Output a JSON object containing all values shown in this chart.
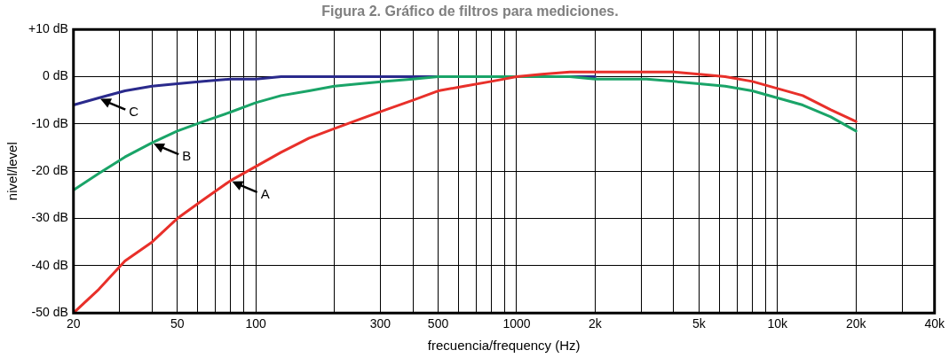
{
  "chart_data": {
    "type": "line",
    "title": "Figura 2. Gráfico de filtros para mediciones.",
    "xlabel": "frecuencia/frequency (Hz)",
    "ylabel": "nivel/level",
    "x": [
      20,
      25,
      31.5,
      40,
      50,
      63,
      80,
      100,
      125,
      160,
      200,
      250,
      315,
      400,
      500,
      630,
      800,
      1000,
      1250,
      1600,
      2000,
      2500,
      3150,
      4000,
      5000,
      6300,
      8000,
      10000,
      12500,
      16000,
      20000
    ],
    "series": [
      {
        "name": "A",
        "color": "#e8302a",
        "values": [
          -50,
          -45,
          -39,
          -35,
          -30,
          -26,
          -22,
          -19,
          -16,
          -13,
          -11,
          -9,
          -7,
          -5,
          -3,
          -2,
          -1,
          0,
          0.5,
          1,
          1,
          1,
          1,
          1,
          0.5,
          0,
          -1,
          -2.5,
          -4,
          -7,
          -9.5
        ]
      },
      {
        "name": "B",
        "color": "#1aa468",
        "values": [
          -24,
          -20.5,
          -17,
          -14,
          -11.5,
          -9.5,
          -7.5,
          -5.5,
          -4,
          -3,
          -2,
          -1.5,
          -1,
          -0.5,
          0,
          0,
          0,
          0,
          0,
          0,
          -0.5,
          -0.5,
          -0.5,
          -1,
          -1.5,
          -2,
          -3,
          -4.5,
          -6,
          -8.5,
          -11.5
        ]
      },
      {
        "name": "C",
        "color": "#2a2a8c",
        "values": [
          -6,
          -4.5,
          -3,
          -2,
          -1.5,
          -1,
          -0.5,
          -0.5,
          0,
          0,
          0,
          0,
          0,
          0,
          0,
          0,
          0,
          0,
          0,
          0,
          0,
          null,
          null,
          null,
          null,
          null,
          null,
          null,
          null,
          null,
          null
        ]
      }
    ],
    "xlim": [
      20,
      40000
    ],
    "ylim": [
      -50,
      10
    ],
    "log": "x",
    "xticks": [
      20,
      {
        "value": 30,
        "label": null
      },
      {
        "value": 40,
        "label": null
      },
      50,
      {
        "value": 60,
        "label": null
      },
      {
        "value": 70,
        "label": null
      },
      {
        "value": 80,
        "label": null
      },
      {
        "value": 90,
        "label": null
      },
      100,
      {
        "value": 200,
        "label": null
      },
      300,
      {
        "value": 400,
        "label": null
      },
      500,
      {
        "value": 600,
        "label": null
      },
      {
        "value": 700,
        "label": null
      },
      {
        "value": 800,
        "label": null
      },
      {
        "value": 900,
        "label": null
      },
      1000,
      {
        "value": 2000,
        "label": "2k"
      },
      {
        "value": 3000,
        "label": null
      },
      {
        "value": 4000,
        "label": null
      },
      {
        "value": 5000,
        "label": "5k"
      },
      {
        "value": 6000,
        "label": null
      },
      {
        "value": 7000,
        "label": null
      },
      {
        "value": 8000,
        "label": null
      },
      {
        "value": 9000,
        "label": null
      },
      {
        "value": 10000,
        "label": "10k"
      },
      {
        "value": 20000,
        "label": "20k"
      },
      {
        "value": 30000,
        "label": null
      },
      {
        "value": 40000,
        "label": "40k"
      }
    ],
    "yticks": [
      {
        "value": 10,
        "label": "+10 dB"
      },
      {
        "value": 0,
        "label": "0 dB"
      },
      {
        "value": -10,
        "label": "-10 dB"
      },
      {
        "value": -20,
        "label": "-20 dB"
      },
      {
        "value": -30,
        "label": "-30 dB"
      },
      {
        "value": -40,
        "label": "-40 dB"
      },
      {
        "value": -50,
        "label": "-50 dB"
      }
    ],
    "grid": true,
    "marker": "none",
    "line_style": "solid"
  }
}
